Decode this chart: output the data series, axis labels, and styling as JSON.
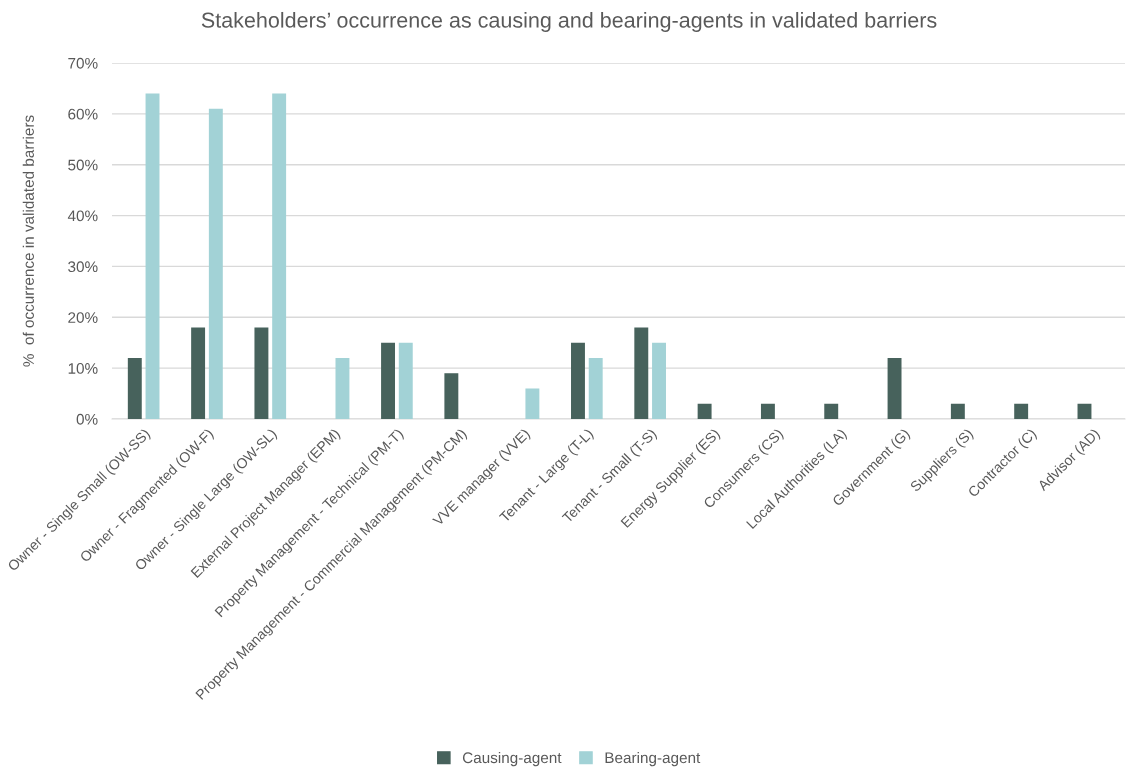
{
  "chart_data": {
    "type": "bar",
    "title": "Stakeholders’ occurrence as causing and bearing-agents in validated barriers",
    "ylabel": "%  of occurrence in validated barriers",
    "categories": [
      "Owner - Single Small (OW-SS)",
      "Owner - Fragmented (OW-F)",
      "Owner - Single Large (OW-SL)",
      "External Project Manager (EPM)",
      "Property Management - Technical (PM-T)",
      "Property Management - Commercial Management (PM-CM)",
      "VVE manager (VVE)",
      "Tenant - Large (T-L)",
      "Tenant - Small (T-S)",
      "Energy Supplier (ES)",
      "Consumers (CS)",
      "Local Authorities (LA)",
      "Government (G)",
      "Suppliers (S)",
      "Contractor (C)",
      "Advisor (AD)"
    ],
    "series": [
      {
        "name": "Causing-agent",
        "color": "#47625c",
        "values": [
          12,
          18,
          18,
          0,
          15,
          9,
          0,
          15,
          18,
          3,
          3,
          3,
          12,
          3,
          3,
          3
        ]
      },
      {
        "name": "Bearing-agent",
        "color": "#a2d2d6",
        "values": [
          64,
          61,
          64,
          12,
          15,
          0,
          6,
          12,
          15,
          0,
          0,
          0,
          0,
          0,
          0,
          0
        ]
      }
    ],
    "ylim": [
      0,
      70
    ],
    "yticks": [
      {
        "value": 0,
        "label": "0%"
      },
      {
        "value": 10,
        "label": "10%"
      },
      {
        "value": 20,
        "label": "20%"
      },
      {
        "value": 30,
        "label": "30%"
      },
      {
        "value": 40,
        "label": "40%"
      },
      {
        "value": 50,
        "label": "50%"
      },
      {
        "value": 60,
        "label": "60%"
      },
      {
        "value": 70,
        "label": "70%"
      }
    ],
    "grid": "y",
    "legend": "bottom"
  }
}
